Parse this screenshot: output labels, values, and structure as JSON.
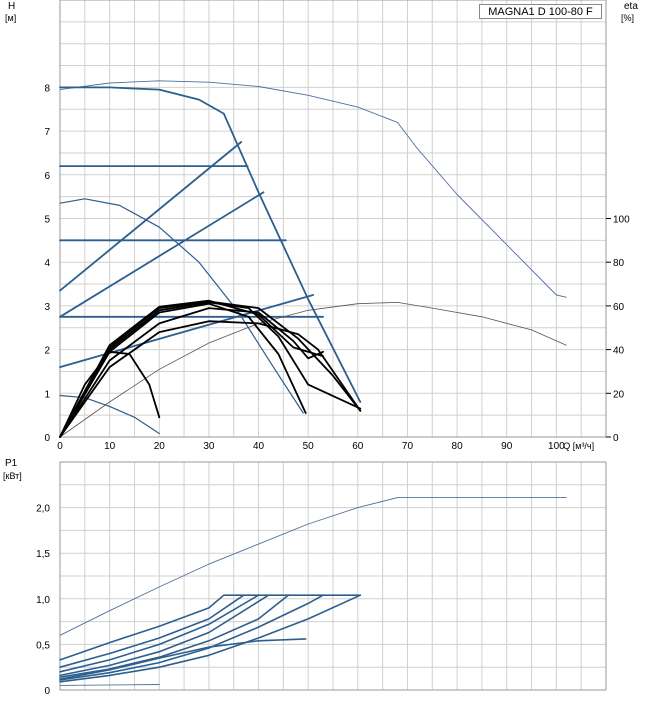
{
  "model": "MAGNA1 D 100-80 F",
  "head_chart_title": "",
  "labels": {
    "head_axis": "H",
    "head_unit": "[м]",
    "eff_axis": "eta",
    "eff_unit": "[%]",
    "flow_axis": "Q [м³/ч]",
    "power_axis": "P1",
    "power_unit": "[кВт]"
  },
  "colors": {
    "pump_curve": "#2c5f8f",
    "eff_curve": "#000000",
    "grid": "#d0d0d0",
    "outer_curve": "#5070a0"
  },
  "chart_data": [
    {
      "type": "line",
      "title": "",
      "xlabel": "Q [м³/ч]",
      "ylabel": "H [м]",
      "y2label": "eta [%]",
      "xlim": [
        0,
        110
      ],
      "ylim": [
        0,
        10
      ],
      "y2lim": [
        0,
        200
      ],
      "x_ticks": [
        0,
        10,
        20,
        30,
        40,
        50,
        60,
        70,
        80,
        90,
        100
      ],
      "y_ticks": [
        0,
        1,
        2,
        3,
        4,
        5,
        6,
        7,
        8
      ],
      "y2_ticks": [
        0,
        20,
        40,
        60,
        80,
        100
      ],
      "grid": true,
      "series": [
        {
          "group": "twin",
          "style": "thin",
          "points": [
            [
              0,
              7.95
            ],
            [
              10,
              8.1
            ],
            [
              20,
              8.15
            ],
            [
              30,
              8.12
            ],
            [
              40,
              8.02
            ],
            [
              50,
              7.82
            ],
            [
              60,
              7.55
            ],
            [
              68,
              7.2
            ],
            [
              72,
              6.6
            ],
            [
              80,
              5.55
            ],
            [
              90,
              4.4
            ],
            [
              100,
              3.25
            ],
            [
              102,
              3.2
            ]
          ]
        },
        {
          "group": "head",
          "style": "bold",
          "points": [
            [
              0,
              8.0
            ],
            [
              10,
              8.0
            ],
            [
              20,
              7.95
            ],
            [
              28,
              7.72
            ],
            [
              33,
              7.4
            ],
            [
              40,
              5.6
            ],
            [
              50,
              3.15
            ],
            [
              60.5,
              0.8
            ]
          ]
        },
        {
          "group": "head",
          "style": "bold",
          "points": [
            [
              0,
              6.2
            ],
            [
              37.8,
              6.2
            ]
          ]
        },
        {
          "group": "head",
          "style": "bold",
          "points": [
            [
              0,
              4.5
            ],
            [
              45.5,
              4.5
            ]
          ]
        },
        {
          "group": "head",
          "style": "bold",
          "points": [
            [
              0,
              2.75
            ],
            [
              53,
              2.75
            ]
          ]
        },
        {
          "group": "head",
          "style": "bold",
          "points": [
            [
              0,
              3.35
            ],
            [
              36.5,
              6.75
            ]
          ]
        },
        {
          "group": "head",
          "style": "bold",
          "points": [
            [
              0,
              2.75
            ],
            [
              41,
              5.6
            ]
          ]
        },
        {
          "group": "head",
          "style": "bold",
          "points": [
            [
              0,
              1.6
            ],
            [
              51,
              3.25
            ]
          ]
        },
        {
          "group": "head",
          "style": "thin",
          "points": [
            [
              0,
              5.35
            ],
            [
              5,
              5.45
            ],
            [
              12,
              5.3
            ],
            [
              20,
              4.8
            ],
            [
              28,
              4.0
            ],
            [
              36,
              2.85
            ],
            [
              43,
              1.6
            ],
            [
              49,
              0.55
            ]
          ]
        },
        {
          "group": "head",
          "style": "thin",
          "points": [
            [
              0,
              0.95
            ],
            [
              5,
              0.9
            ],
            [
              10,
              0.7
            ],
            [
              15,
              0.45
            ],
            [
              20,
              0.08
            ]
          ]
        },
        {
          "group": "eff",
          "style": "thin",
          "points": [
            [
              0,
              0
            ],
            [
              10,
              0.8
            ],
            [
              20,
              1.55
            ],
            [
              30,
              2.15
            ],
            [
              40,
              2.6
            ],
            [
              50,
              2.9
            ],
            [
              60,
              3.05
            ],
            [
              68,
              3.08
            ],
            [
              75,
              2.95
            ],
            [
              85,
              2.75
            ],
            [
              95,
              2.45
            ],
            [
              102,
              2.1
            ]
          ]
        },
        {
          "group": "eff",
          "style": "bold",
          "points": [
            [
              0,
              0
            ],
            [
              10,
              1.6
            ],
            [
              20,
              2.4
            ],
            [
              30,
              2.65
            ],
            [
              40,
              2.6
            ],
            [
              48,
              2.35
            ],
            [
              52,
              2.0
            ],
            [
              60.5,
              0.6
            ]
          ]
        },
        {
          "group": "eff",
          "style": "bold",
          "points": [
            [
              0,
              0
            ],
            [
              10,
              1.75
            ],
            [
              20,
              2.6
            ],
            [
              30,
              2.95
            ],
            [
              40,
              2.85
            ],
            [
              47,
              2.2
            ],
            [
              50,
              1.8
            ],
            [
              53,
              1.95
            ]
          ]
        },
        {
          "group": "eff",
          "style": "bold",
          "points": [
            [
              0,
              0
            ],
            [
              10,
              1.95
            ],
            [
              20,
              2.85
            ],
            [
              30,
              3.05
            ],
            [
              38,
              2.75
            ],
            [
              44,
              1.9
            ],
            [
              49.5,
              0.55
            ]
          ]
        },
        {
          "group": "eff",
          "style": "bold",
          "points": [
            [
              0,
              0
            ],
            [
              10,
              2.0
            ],
            [
              20,
              2.9
            ],
            [
              30,
              3.08
            ],
            [
              38,
              2.95
            ],
            [
              44,
              2.3
            ],
            [
              50,
              1.2
            ],
            [
              60.5,
              0.65
            ]
          ]
        },
        {
          "group": "eff",
          "style": "bold",
          "points": [
            [
              0,
              0
            ],
            [
              10,
              2.05
            ],
            [
              20,
              2.95
            ],
            [
              30,
              3.1
            ],
            [
              40,
              2.95
            ],
            [
              48,
              2.25
            ],
            [
              55,
              1.4
            ],
            [
              60.5,
              0.6
            ]
          ]
        },
        {
          "group": "eff",
          "style": "bold",
          "points": [
            [
              0,
              0
            ],
            [
              10,
              2.1
            ],
            [
              20,
              2.98
            ],
            [
              30,
              3.12
            ],
            [
              40,
              2.8
            ],
            [
              47,
              2.05
            ],
            [
              53,
              1.85
            ]
          ]
        },
        {
          "group": "eff",
          "style": "bold",
          "points": [
            [
              0,
              0
            ],
            [
              5,
              1.2
            ],
            [
              10,
              1.95
            ],
            [
              14,
              1.9
            ],
            [
              18,
              1.2
            ],
            [
              20,
              0.45
            ]
          ]
        }
      ]
    },
    {
      "type": "line",
      "title": "",
      "xlabel": "",
      "ylabel": "P1 [кВт]",
      "xlim": [
        0,
        110
      ],
      "ylim": [
        0,
        2.5
      ],
      "y_ticks": [
        0,
        0.5,
        1.0,
        1.5,
        2.0
      ],
      "y_tick_labels": [
        "0",
        "0,5",
        "1,0",
        "1,5",
        "2,0"
      ],
      "grid": true,
      "series": [
        {
          "style": "thin",
          "points": [
            [
              0,
              0.6
            ],
            [
              10,
              0.87
            ],
            [
              20,
              1.13
            ],
            [
              30,
              1.38
            ],
            [
              40,
              1.6
            ],
            [
              50,
              1.82
            ],
            [
              60,
              2.0
            ],
            [
              68,
              2.11
            ],
            [
              102,
              2.11
            ]
          ]
        },
        {
          "style": "bold",
          "points": [
            [
              0,
              0.33
            ],
            [
              10,
              0.52
            ],
            [
              20,
              0.7
            ],
            [
              30,
              0.9
            ],
            [
              33,
              1.04
            ],
            [
              60.5,
              1.04
            ]
          ]
        },
        {
          "style": "bold",
          "points": [
            [
              0,
              0.25
            ],
            [
              10,
              0.4
            ],
            [
              20,
              0.57
            ],
            [
              30,
              0.78
            ],
            [
              37,
              1.04
            ]
          ]
        },
        {
          "style": "bold",
          "points": [
            [
              0,
              0.2
            ],
            [
              10,
              0.33
            ],
            [
              20,
              0.5
            ],
            [
              30,
              0.72
            ],
            [
              40,
              1.04
            ]
          ]
        },
        {
          "style": "bold",
          "points": [
            [
              0,
              0.16
            ],
            [
              10,
              0.27
            ],
            [
              20,
              0.42
            ],
            [
              30,
              0.63
            ],
            [
              42,
              1.04
            ]
          ]
        },
        {
          "style": "bold",
          "points": [
            [
              0,
              0.14
            ],
            [
              10,
              0.23
            ],
            [
              20,
              0.36
            ],
            [
              30,
              0.54
            ],
            [
              40,
              0.78
            ],
            [
              46,
              1.04
            ]
          ]
        },
        {
          "style": "bold",
          "points": [
            [
              0,
              0.11
            ],
            [
              10,
              0.19
            ],
            [
              20,
              0.3
            ],
            [
              30,
              0.46
            ],
            [
              40,
              0.69
            ],
            [
              50,
              0.95
            ],
            [
              53,
              1.04
            ]
          ]
        },
        {
          "style": "bold",
          "points": [
            [
              0,
              0.09
            ],
            [
              10,
              0.16
            ],
            [
              20,
              0.25
            ],
            [
              30,
              0.38
            ],
            [
              40,
              0.57
            ],
            [
              50,
              0.78
            ],
            [
              60.5,
              1.04
            ]
          ]
        },
        {
          "style": "bold",
          "points": [
            [
              0,
              0.12
            ],
            [
              10,
              0.22
            ],
            [
              20,
              0.35
            ],
            [
              30,
              0.47
            ],
            [
              40,
              0.54
            ],
            [
              49.5,
              0.56
            ]
          ]
        },
        {
          "style": "thin",
          "points": [
            [
              0,
              0.05
            ],
            [
              20,
              0.06
            ]
          ]
        }
      ]
    }
  ]
}
